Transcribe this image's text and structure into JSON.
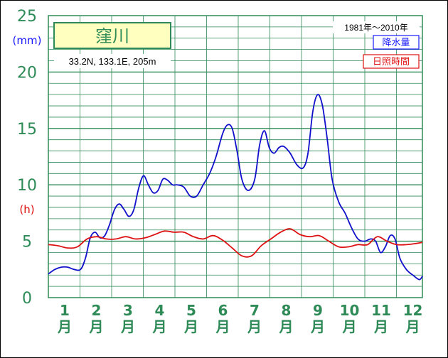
{
  "chart_data": {
    "type": "line",
    "station": "窪川",
    "location": "33.2N,  133.1E,  205m",
    "period": "1981年〜2010年",
    "y_ticks": [
      "0",
      "5",
      "10",
      "15",
      "20",
      "25"
    ],
    "ylim": [
      0,
      25
    ],
    "y_unit_left": "(mm)",
    "y_unit_right": "(h)",
    "months": [
      "1",
      "2",
      "3",
      "4",
      "5",
      "6",
      "7",
      "8",
      "9",
      "10",
      "11",
      "12"
    ],
    "month_suffix": "月",
    "colors": {
      "precip": "#1010cc",
      "sunshine": "#dd1111",
      "grid": "#2e8b57"
    },
    "series": [
      {
        "name": "降水量",
        "color": "#1010cc",
        "x": [
          0.0,
          0.2,
          0.4,
          0.6,
          0.8,
          1.0,
          1.15,
          1.3,
          1.45,
          1.6,
          1.75,
          1.9,
          2.05,
          2.2,
          2.35,
          2.5,
          2.65,
          2.8,
          2.95,
          3.1,
          3.25,
          3.4,
          3.55,
          3.7,
          3.85,
          4.0,
          4.2,
          4.4,
          4.6,
          4.8,
          5.0,
          5.2,
          5.4,
          5.55,
          5.7,
          5.85,
          6.0,
          6.2,
          6.4,
          6.55,
          6.7,
          6.85,
          7.0,
          7.15,
          7.3,
          7.5,
          7.7,
          7.9,
          8.05,
          8.2,
          8.35,
          8.5,
          8.65,
          8.8,
          9.0,
          9.2,
          9.4,
          9.6,
          9.8,
          10.0,
          10.15,
          10.3,
          10.45,
          10.6,
          10.75,
          10.9,
          11.1,
          11.3,
          11.5,
          11.6
        ],
        "values": [
          2.1,
          2.5,
          2.7,
          2.7,
          2.5,
          2.5,
          3.5,
          5.3,
          5.8,
          5.3,
          5.5,
          6.5,
          7.8,
          8.3,
          7.8,
          7.2,
          7.8,
          9.7,
          10.8,
          10.0,
          9.3,
          9.5,
          10.5,
          10.4,
          10.0,
          10.0,
          9.8,
          9.0,
          9.0,
          10.0,
          11.0,
          12.5,
          14.5,
          15.3,
          15.0,
          13.0,
          10.5,
          9.5,
          10.5,
          13.5,
          14.8,
          13.3,
          12.8,
          13.3,
          13.4,
          12.8,
          11.8,
          11.5,
          12.8,
          16.5,
          18.0,
          17.0,
          14.0,
          10.5,
          8.5,
          7.5,
          6.2,
          5.2,
          5.0,
          5.2,
          5.0,
          4.0,
          4.5,
          5.5,
          5.2,
          3.5,
          2.5,
          2.0,
          1.6,
          1.9
        ]
      },
      {
        "name": "日照時間",
        "color": "#dd1111",
        "x": [
          0.0,
          0.3,
          0.6,
          0.9,
          1.2,
          1.5,
          1.8,
          2.1,
          2.4,
          2.7,
          3.0,
          3.3,
          3.6,
          3.9,
          4.2,
          4.5,
          4.8,
          5.1,
          5.4,
          5.7,
          6.0,
          6.3,
          6.6,
          6.9,
          7.2,
          7.5,
          7.8,
          8.1,
          8.4,
          8.7,
          9.0,
          9.3,
          9.6,
          9.9,
          10.2,
          10.5,
          10.8,
          11.1,
          11.4,
          11.6
        ],
        "values": [
          4.7,
          4.6,
          4.4,
          4.5,
          5.2,
          5.4,
          5.2,
          5.2,
          5.4,
          5.2,
          5.3,
          5.6,
          5.9,
          5.8,
          5.8,
          5.4,
          5.2,
          5.5,
          5.1,
          4.4,
          3.7,
          3.7,
          4.6,
          5.2,
          5.8,
          6.1,
          5.6,
          5.4,
          5.5,
          5.0,
          4.5,
          4.5,
          4.7,
          4.7,
          5.4,
          5.0,
          4.7,
          4.7,
          4.8,
          4.9
        ]
      }
    ],
    "grid": true,
    "legend": "top-right"
  }
}
